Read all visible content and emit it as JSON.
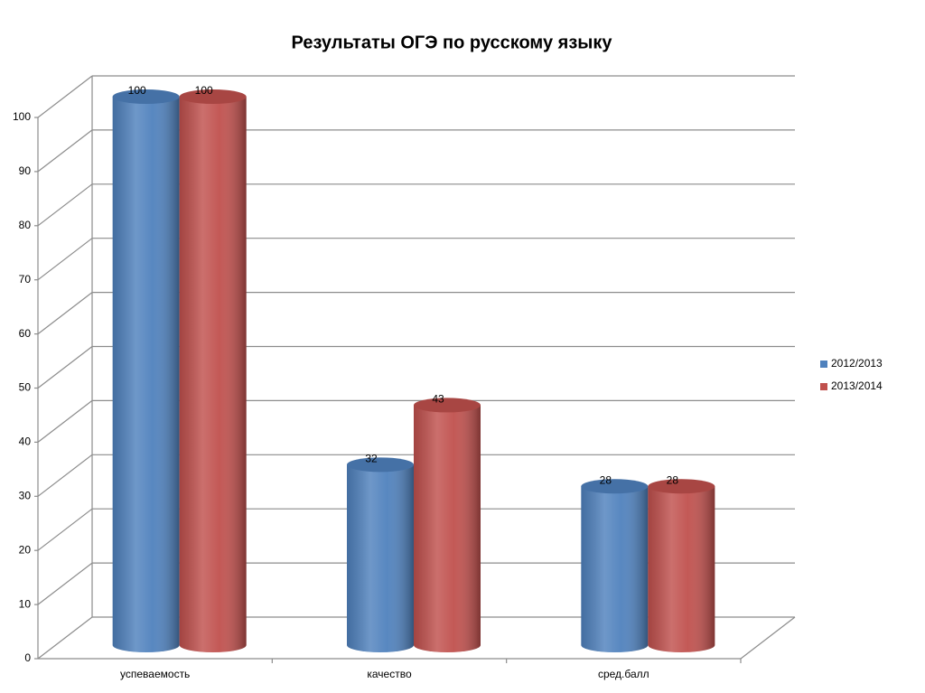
{
  "chart_data": {
    "type": "bar",
    "title": "Результаты ОГЭ по русскому языку",
    "categories": [
      "успеваемость",
      "качество",
      "сред.балл"
    ],
    "series": [
      {
        "name": "2012/2013",
        "color": "#4f81bd",
        "values": [
          100,
          32,
          28
        ]
      },
      {
        "name": "2013/2014",
        "color": "#c0504d",
        "values": [
          100,
          43,
          28
        ]
      }
    ],
    "ylim": [
      0,
      100
    ],
    "yticks": [
      0,
      10,
      20,
      30,
      40,
      50,
      60,
      70,
      80,
      90,
      100
    ],
    "grid": true,
    "legend": "right"
  }
}
